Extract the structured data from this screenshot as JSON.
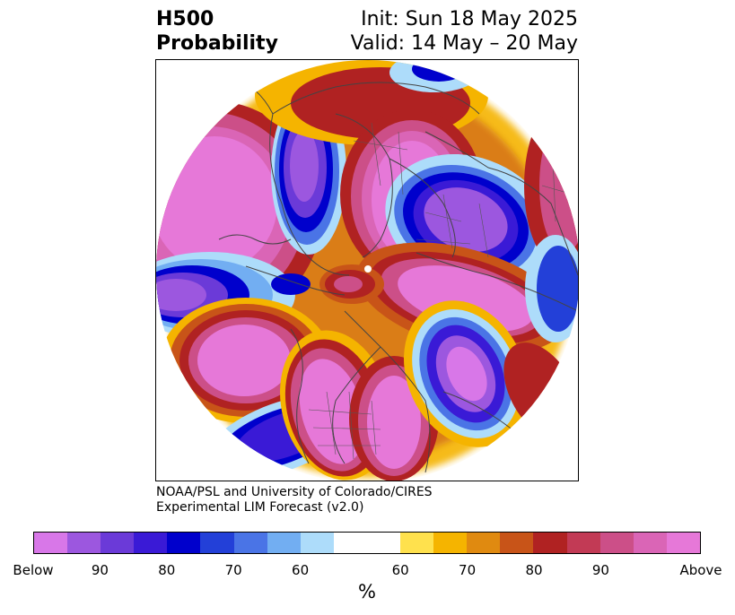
{
  "header": {
    "title_line1": "H500",
    "title_line2": "Probability",
    "init_label": "Init: Sun 18 May 2025",
    "valid_label": "Valid: 14 May – 20 May"
  },
  "credit": {
    "line1": "NOAA/PSL and University of Colorado/CIRES",
    "line2": "Experimental LIM Forecast (v2.0)"
  },
  "colorbar": {
    "colors": [
      "#d877e8",
      "#9c57df",
      "#6b3ad8",
      "#3a1ad6",
      "#0000cc",
      "#2340d8",
      "#4a74e6",
      "#72aef2",
      "#addcfa",
      "#ffffff",
      "#ffe14d",
      "#f5b400",
      "#e08a10",
      "#c85418",
      "#b02222",
      "#c23a55",
      "#cc4f88",
      "#da65b6",
      "#e678d8"
    ],
    "ticks": [
      "Below",
      "90",
      "80",
      "70",
      "60",
      "60",
      "70",
      "80",
      "90",
      "Above"
    ],
    "unit": "%"
  }
}
